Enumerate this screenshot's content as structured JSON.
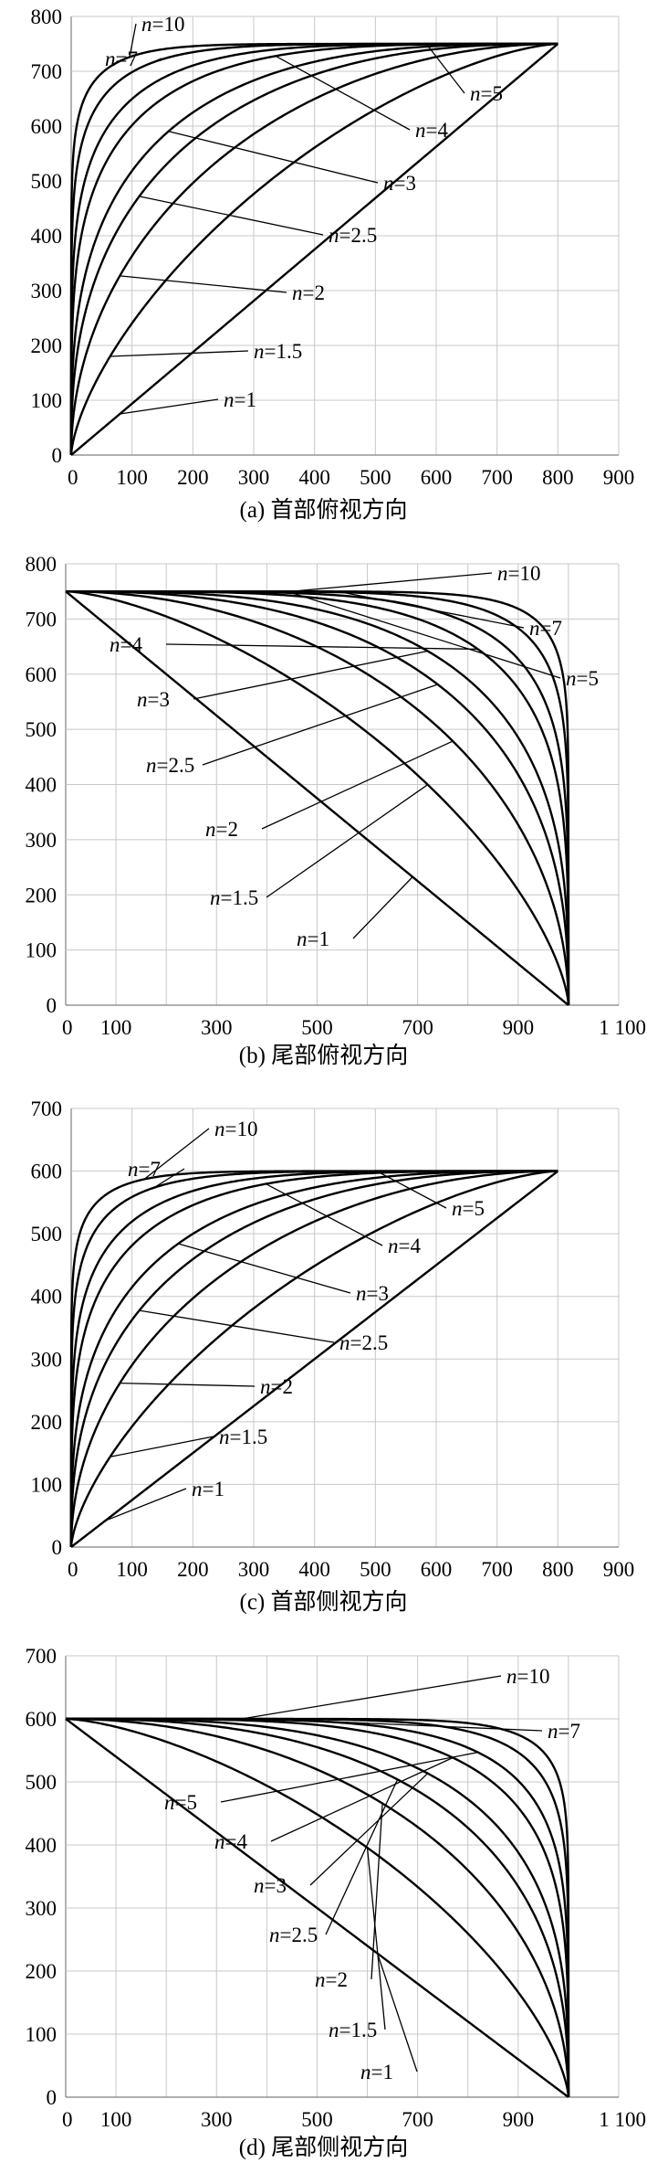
{
  "chart_data": [
    {
      "type": "line",
      "caption": "(a) 首部俯视方向",
      "xlim": [
        0,
        900
      ],
      "ylim": [
        0,
        800
      ],
      "xticks": [
        "0",
        "100",
        "200",
        "300",
        "400",
        "500",
        "600",
        "700",
        "800",
        "900"
      ],
      "yticks": [
        "0",
        "100",
        "200",
        "300",
        "400",
        "500",
        "600",
        "700",
        "800"
      ],
      "grid": true,
      "shape": "head",
      "length": 800,
      "max_y": 750,
      "series": [
        {
          "n": "10",
          "prefix": "n",
          "label": "=10"
        },
        {
          "n": "7",
          "prefix": "n",
          "label": "=7"
        },
        {
          "n": "5",
          "prefix": "n",
          "label": "=5"
        },
        {
          "n": "4",
          "prefix": "n",
          "label": "=4"
        },
        {
          "n": "3",
          "prefix": "n",
          "label": "=3"
        },
        {
          "n": "2.5",
          "prefix": "n",
          "label": "=2.5"
        },
        {
          "n": "2",
          "prefix": "n",
          "label": "=2"
        },
        {
          "n": "1.5",
          "prefix": "n",
          "label": "=1.5"
        },
        {
          "n": "1",
          "prefix": "n",
          "label": "=1"
        }
      ]
    },
    {
      "type": "line",
      "caption": "(b) 尾部俯视方向",
      "xlim": [
        0,
        1100
      ],
      "ylim": [
        0,
        800
      ],
      "xticks": [
        "0",
        "100",
        "300",
        "500",
        "700",
        "900",
        "1 100"
      ],
      "yticks": [
        "0",
        "100",
        "200",
        "300",
        "400",
        "500",
        "600",
        "700",
        "800"
      ],
      "grid": true,
      "shape": "tail",
      "length": 1000,
      "max_y": 750,
      "series": [
        {
          "n": "10",
          "prefix": "n",
          "label": "=10"
        },
        {
          "n": "7",
          "prefix": "n",
          "label": "=7"
        },
        {
          "n": "5",
          "prefix": "n",
          "label": "=5"
        },
        {
          "n": "4",
          "prefix": "n",
          "label": "=4"
        },
        {
          "n": "3",
          "prefix": "n",
          "label": "=3"
        },
        {
          "n": "2.5",
          "prefix": "n",
          "label": "=2.5"
        },
        {
          "n": "2",
          "prefix": "n",
          "label": "=2"
        },
        {
          "n": "1.5",
          "prefix": "n",
          "label": "=1.5"
        },
        {
          "n": "1",
          "prefix": "n",
          "label": "=1"
        }
      ]
    },
    {
      "type": "line",
      "caption": "(c) 首部侧视方向",
      "xlim": [
        0,
        900
      ],
      "ylim": [
        0,
        700
      ],
      "xticks": [
        "0",
        "100",
        "200",
        "300",
        "400",
        "500",
        "600",
        "700",
        "800",
        "900"
      ],
      "yticks": [
        "0",
        "100",
        "200",
        "300",
        "400",
        "500",
        "600",
        "700"
      ],
      "grid": true,
      "shape": "head",
      "length": 800,
      "max_y": 600,
      "series": [
        {
          "n": "10",
          "prefix": "n",
          "label": "=10"
        },
        {
          "n": "7",
          "prefix": "n",
          "label": "=7"
        },
        {
          "n": "5",
          "prefix": "n",
          "label": "=5"
        },
        {
          "n": "4",
          "prefix": "n",
          "label": "=4"
        },
        {
          "n": "3",
          "prefix": "n",
          "label": "=3"
        },
        {
          "n": "2.5",
          "prefix": "n",
          "label": "=2.5"
        },
        {
          "n": "2",
          "prefix": "n",
          "label": "=2"
        },
        {
          "n": "1.5",
          "prefix": "n",
          "label": "=1.5"
        },
        {
          "n": "1",
          "prefix": "n",
          "label": "=1"
        }
      ]
    },
    {
      "type": "line",
      "caption": "(d) 尾部侧视方向",
      "xlim": [
        0,
        1100
      ],
      "ylim": [
        0,
        700
      ],
      "xticks": [
        "0",
        "100",
        "300",
        "500",
        "700",
        "900",
        "1 100"
      ],
      "yticks": [
        "0",
        "100",
        "200",
        "300",
        "400",
        "500",
        "600",
        "700"
      ],
      "grid": true,
      "shape": "tail",
      "length": 1000,
      "max_y": 600,
      "series": [
        {
          "n": "10",
          "prefix": "n",
          "label": "=10"
        },
        {
          "n": "7",
          "prefix": "n",
          "label": "=7"
        },
        {
          "n": "5",
          "prefix": "n",
          "label": "=5"
        },
        {
          "n": "4",
          "prefix": "n",
          "label": "=4"
        },
        {
          "n": "3",
          "prefix": "n",
          "label": "=3"
        },
        {
          "n": "2.5",
          "prefix": "n",
          "label": "=2.5"
        },
        {
          "n": "2",
          "prefix": "n",
          "label": "=2"
        },
        {
          "n": "1.5",
          "prefix": "n",
          "label": "=1.5"
        },
        {
          "n": "1",
          "prefix": "n",
          "label": "=1"
        }
      ]
    }
  ]
}
